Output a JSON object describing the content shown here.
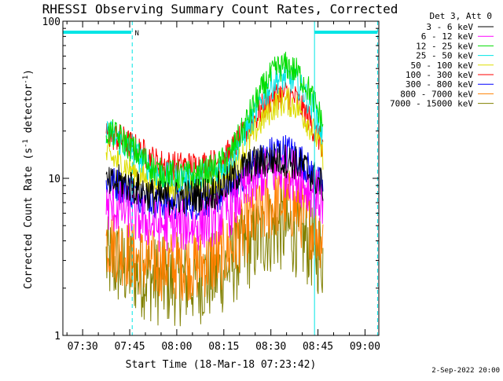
{
  "chart_data": {
    "type": "line",
    "title": "RHESSI Observing Summary Count Rates, Corrected",
    "xlabel": "Start Time (18-Mar-18 07:23:42)",
    "ylabel": "Corrected Count Rate (s⁻¹ detector⁻¹)",
    "ylabel_parts": {
      "main": "Corrected Count Rate (s",
      "exp1": "-1",
      "mid": " detector",
      "exp2": "-1",
      "end": ")"
    },
    "yscale": "log",
    "ylim": [
      1,
      100
    ],
    "xlim_minutes": [
      443.7,
      544.4
    ],
    "x_ticks": [
      {
        "label": "07:30",
        "minutes": 450
      },
      {
        "label": "07:45",
        "minutes": 465
      },
      {
        "label": "08:00",
        "minutes": 480
      },
      {
        "label": "08:15",
        "minutes": 495
      },
      {
        "label": "08:30",
        "minutes": 510
      },
      {
        "label": "08:45",
        "minutes": 525
      },
      {
        "label": "09:00",
        "minutes": 540
      }
    ],
    "y_ticks": [
      {
        "label": "1",
        "value": 1
      },
      {
        "label": "10",
        "value": 10
      },
      {
        "label": "100",
        "value": 100
      }
    ],
    "legend_header": "Det 3, Att 0",
    "data_window_minutes": [
      457.5,
      526.6
    ],
    "profile_minutes": [
      457.5,
      462,
      468,
      474,
      480,
      486,
      492,
      497,
      501,
      505,
      509,
      512,
      515,
      518,
      521,
      524,
      526.6
    ],
    "series": [
      {
        "name": "3 - 6 keV",
        "color": "#000000",
        "noise": 0.12,
        "values": [
          9.0,
          9.5,
          8.5,
          7.5,
          7.5,
          7.8,
          8.2,
          9.5,
          11.5,
          12.5,
          13.0,
          13.2,
          13.0,
          12.5,
          11.5,
          10.0,
          9.0
        ]
      },
      {
        "name": "6 - 12 keV",
        "color": "#ff00ff",
        "noise": 0.18,
        "values": [
          6.5,
          6.5,
          5.5,
          5.0,
          5.0,
          5.0,
          5.5,
          6.2,
          8.0,
          9.5,
          11.0,
          11.2,
          11.0,
          10.5,
          9.0,
          8.0,
          7.0
        ]
      },
      {
        "name": "12 - 25 keV",
        "color": "#00dd00",
        "noise": 0.1,
        "values": [
          20.0,
          18.0,
          14.0,
          11.0,
          10.5,
          10.5,
          11.5,
          14.0,
          20.0,
          30.0,
          42.0,
          50.0,
          52.0,
          48.0,
          40.0,
          30.0,
          22.0
        ]
      },
      {
        "name": "25 - 50 keV",
        "color": "#00e5e5",
        "noise": 0.1,
        "values": [
          20.0,
          17.0,
          13.5,
          10.5,
          10.0,
          10.0,
          11.0,
          13.0,
          18.0,
          26.0,
          36.0,
          43.0,
          44.0,
          41.0,
          34.0,
          26.0,
          18.0
        ]
      },
      {
        "name": "50 - 100 keV",
        "color": "#dddd00",
        "noise": 0.1,
        "values": [
          14.0,
          12.5,
          10.5,
          9.0,
          8.8,
          8.8,
          9.2,
          11.0,
          14.0,
          20.0,
          26.0,
          30.0,
          31.0,
          29.0,
          24.0,
          19.0,
          14.0
        ]
      },
      {
        "name": "100 - 300 keV",
        "color": "#ff0000",
        "noise": 0.1,
        "values": [
          19.0,
          18.0,
          15.0,
          12.5,
          12.0,
          12.0,
          12.5,
          14.5,
          18.5,
          24.0,
          31.0,
          34.0,
          34.5,
          32.0,
          26.0,
          20.0,
          16.0
        ]
      },
      {
        "name": "300 - 800 keV",
        "color": "#0000ff",
        "noise": 0.12,
        "values": [
          9.5,
          9.0,
          7.8,
          7.0,
          7.0,
          7.0,
          7.5,
          8.5,
          10.5,
          12.5,
          14.0,
          15.0,
          15.0,
          14.0,
          12.0,
          10.0,
          8.5
        ]
      },
      {
        "name": "800 - 7000 keV",
        "color": "#ff8000",
        "noise": 0.24,
        "values": [
          4.0,
          3.5,
          3.0,
          2.8,
          2.8,
          2.8,
          3.0,
          3.5,
          4.5,
          5.5,
          6.5,
          7.0,
          7.0,
          6.5,
          5.5,
          4.8,
          4.2
        ]
      },
      {
        "name": "7000 - 15000 keV",
        "color": "#808000",
        "noise": 0.3,
        "values": [
          3.0,
          2.8,
          2.5,
          2.2,
          2.2,
          2.2,
          2.4,
          2.8,
          3.4,
          4.0,
          4.6,
          4.8,
          4.8,
          4.5,
          4.0,
          3.6,
          3.2
        ]
      }
    ],
    "vertical_lines": [
      {
        "minutes": 443.7,
        "color": "#00e5e5",
        "style": "solid"
      },
      {
        "minutes": 465.8,
        "color": "#00e5e5",
        "style": "dashed"
      },
      {
        "minutes": 523.9,
        "color": "#00e5e5",
        "style": "solid"
      },
      {
        "minutes": 544.0,
        "color": "#00e5e5",
        "style": "dashed"
      }
    ],
    "top_bars": [
      {
        "start_minutes": 443.7,
        "end_minutes": 465.5,
        "color": "#00e5e5"
      },
      {
        "start_minutes": 524.0,
        "end_minutes": 544.0,
        "color": "#00e5e5"
      }
    ],
    "bar_marker": {
      "label": "N",
      "minutes": 467.3
    }
  },
  "footer_date": "2-Sep-2022 20:00"
}
